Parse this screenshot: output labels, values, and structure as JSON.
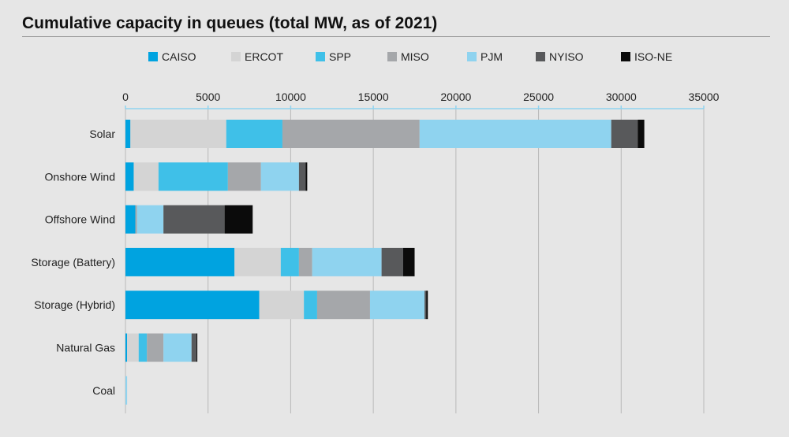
{
  "chart_data": {
    "type": "bar",
    "orientation": "horizontal",
    "stacked": true,
    "title": "Cumulative capacity in queues (total MW, as of 2021)",
    "categories": [
      "Solar",
      "Onshore Wind",
      "Offshore Wind",
      "Storage (Battery)",
      "Storage (Hybrid)",
      "Natural Gas",
      "Coal"
    ],
    "xlim": [
      0,
      35000
    ],
    "xticks": [
      0,
      5000,
      10000,
      15000,
      20000,
      25000,
      30000,
      35000
    ],
    "xtick_labels": [
      "0",
      "5000",
      "10000",
      "15000",
      "20000",
      "25000",
      "30000",
      "35000"
    ],
    "grid": true,
    "axis_position": "top",
    "legend_position": "top",
    "series": [
      {
        "name": "CAISO",
        "color": "#00a3e0",
        "values": [
          300,
          500,
          600,
          6600,
          8100,
          100,
          0
        ]
      },
      {
        "name": "ERCOT",
        "color": "#d4d4d4",
        "values": [
          5800,
          1500,
          0,
          2800,
          2700,
          700,
          0
        ]
      },
      {
        "name": "SPP",
        "color": "#3fc0e8",
        "values": [
          3400,
          4200,
          0,
          1100,
          800,
          500,
          0
        ]
      },
      {
        "name": "MISO",
        "color": "#a5a7aa",
        "values": [
          8300,
          2000,
          100,
          800,
          3200,
          1000,
          0
        ]
      },
      {
        "name": "PJM",
        "color": "#8fd3ef",
        "values": [
          11600,
          2300,
          1600,
          4200,
          3300,
          1700,
          100
        ]
      },
      {
        "name": "NYISO",
        "color": "#58595b",
        "values": [
          1600,
          400,
          3700,
          1300,
          100,
          300,
          0
        ]
      },
      {
        "name": "ISO-NE",
        "color": "#0b0b0b",
        "values": [
          400,
          100,
          1700,
          700,
          100,
          50,
          0
        ]
      }
    ]
  }
}
